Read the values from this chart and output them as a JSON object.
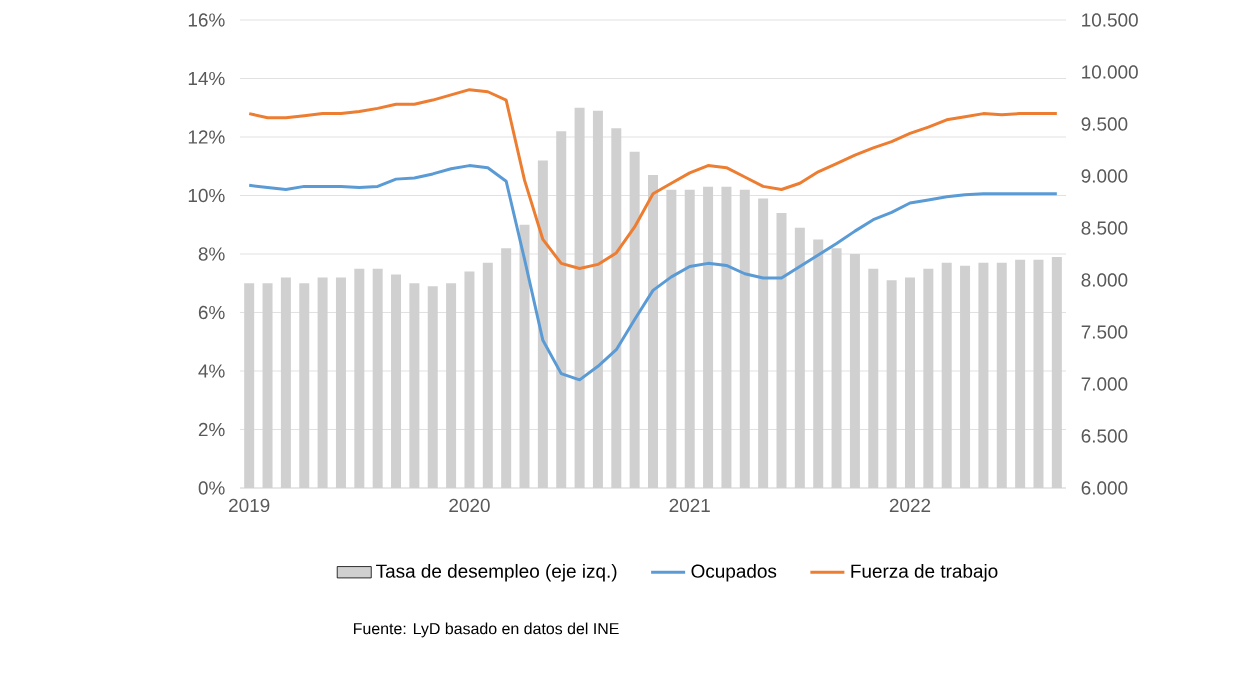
{
  "chart_data": {
    "type": "bar",
    "categories": [
      "2019",
      null,
      null,
      null,
      null,
      null,
      null,
      null,
      null,
      null,
      null,
      null,
      "2020",
      null,
      null,
      null,
      null,
      null,
      null,
      null,
      null,
      null,
      null,
      null,
      "2021",
      null,
      null,
      null,
      null,
      null,
      null,
      null,
      null,
      null,
      null,
      null,
      "2022",
      null,
      null,
      null,
      null,
      null,
      null,
      null,
      null
    ],
    "series": [
      {
        "name": "Tasa de desempleo (eje izq.)",
        "color": "#d0d0d0",
        "values": [
          7.0,
          7.0,
          7.2,
          7.0,
          7.2,
          7.2,
          7.5,
          7.5,
          7.3,
          7.0,
          6.9,
          7.0,
          7.4,
          7.7,
          8.2,
          9.0,
          11.2,
          12.2,
          13.0,
          12.9,
          12.3,
          11.5,
          10.7,
          10.2,
          10.2,
          10.3,
          10.3,
          10.2,
          9.9,
          9.4,
          8.9,
          8.5,
          8.2,
          8.0,
          7.5,
          7.1,
          7.2,
          7.5,
          7.7,
          7.6,
          7.7,
          7.7,
          7.8,
          7.8,
          7.9
        ]
      },
      {
        "name": "Ocupados",
        "type": "line",
        "axis": "y2",
        "color": "#5b9bd5",
        "values": [
          8910,
          8890,
          8870,
          8900,
          8900,
          8900,
          8890,
          8900,
          8970,
          8980,
          9020,
          9070,
          9100,
          9080,
          8950,
          8200,
          7420,
          7100,
          7040,
          7170,
          7330,
          7620,
          7900,
          8030,
          8130,
          8160,
          8140,
          8060,
          8020,
          8020,
          8130,
          8240,
          8350,
          8470,
          8580,
          8650,
          8740,
          8770,
          8800,
          8820,
          8830,
          8830,
          8830,
          8830,
          8830
        ]
      },
      {
        "name": "Fuerza de trabajo",
        "type": "line",
        "axis": "y2",
        "color": "#ed7d31",
        "values": [
          9600,
          9560,
          9560,
          9580,
          9600,
          9600,
          9620,
          9650,
          9690,
          9690,
          9730,
          9780,
          9830,
          9810,
          9730,
          8960,
          8390,
          8160,
          8110,
          8150,
          8260,
          8510,
          8830,
          8930,
          9030,
          9100,
          9080,
          8990,
          8900,
          8870,
          8930,
          9040,
          9120,
          9200,
          9270,
          9330,
          9410,
          9470,
          9540,
          9570,
          9600,
          9590,
          9600,
          9600,
          9600
        ]
      }
    ],
    "ylim": [
      0,
      16
    ],
    "yticks": [
      {
        "value": 0,
        "label": "0%"
      },
      {
        "value": 2,
        "label": "2%"
      },
      {
        "value": 4,
        "label": "4%"
      },
      {
        "value": 6,
        "label": "6%"
      },
      {
        "value": 8,
        "label": "8%"
      },
      {
        "value": 10,
        "label": "10%"
      },
      {
        "value": 12,
        "label": "12%"
      },
      {
        "value": 14,
        "label": "14%"
      },
      {
        "value": 16,
        "label": "16%"
      }
    ],
    "y2lim": [
      6000,
      10500
    ],
    "y2ticks": [
      {
        "value": 6000,
        "label": "6.000"
      },
      {
        "value": 6500,
        "label": "6.500"
      },
      {
        "value": 7000,
        "label": "7.000"
      },
      {
        "value": 7500,
        "label": "7.500"
      },
      {
        "value": 8000,
        "label": "8.000"
      },
      {
        "value": 8500,
        "label": "8.500"
      },
      {
        "value": 9000,
        "label": "9.000"
      },
      {
        "value": 9500,
        "label": "9.500"
      },
      {
        "value": 10000,
        "label": "10.000"
      },
      {
        "value": 10500,
        "label": "10.500"
      }
    ],
    "grid": "y",
    "legend": "bottom",
    "annotations": [
      "Fuente: LyD basado en datos del INE"
    ]
  }
}
